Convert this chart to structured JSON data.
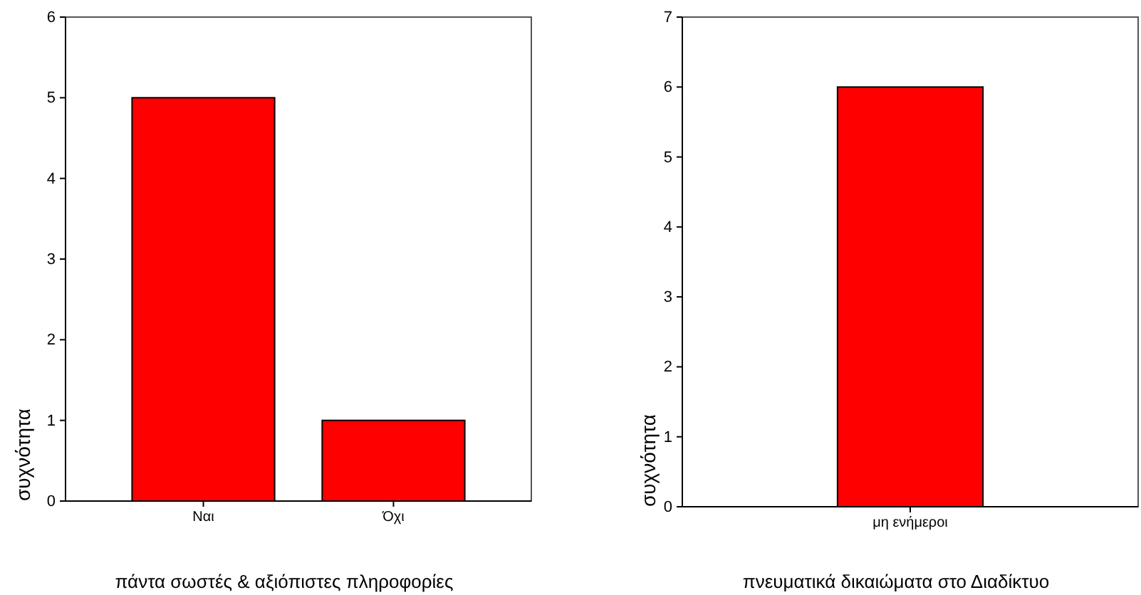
{
  "chart_data": [
    {
      "type": "bar",
      "categories": [
        "Ναι",
        "Όχι"
      ],
      "values": [
        5,
        1
      ],
      "color": "#ff0000",
      "xlabel": "πάντα σωστές & αξιόπιστες πληροφορίες",
      "ylabel": "συχνότητα",
      "ylim": [
        0,
        6
      ],
      "yticks": [
        0,
        1,
        2,
        3,
        4,
        5,
        6
      ]
    },
    {
      "type": "bar",
      "categories": [
        "μη ενήμεροι"
      ],
      "values": [
        6
      ],
      "color": "#ff0000",
      "xlabel": "πνευματικά δικαιώματα στο Διαδίκτυο",
      "ylabel": "συχνότητα",
      "ylim": [
        0,
        7
      ],
      "yticks": [
        0,
        1,
        2,
        3,
        4,
        5,
        6,
        7
      ]
    }
  ]
}
